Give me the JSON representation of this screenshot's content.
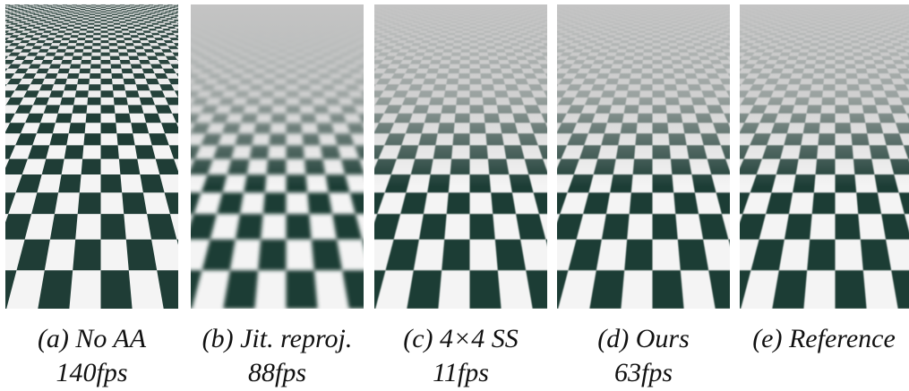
{
  "panels": [
    {
      "label": "(a) No AA",
      "fps": "140fps"
    },
    {
      "label": "(b) Jit. reproj.",
      "fps": "88fps"
    },
    {
      "label": "(c) 4×4 SS",
      "fps": "11fps"
    },
    {
      "label": "(d) Ours",
      "fps": "63fps"
    },
    {
      "label": "(e) Reference"
    }
  ]
}
